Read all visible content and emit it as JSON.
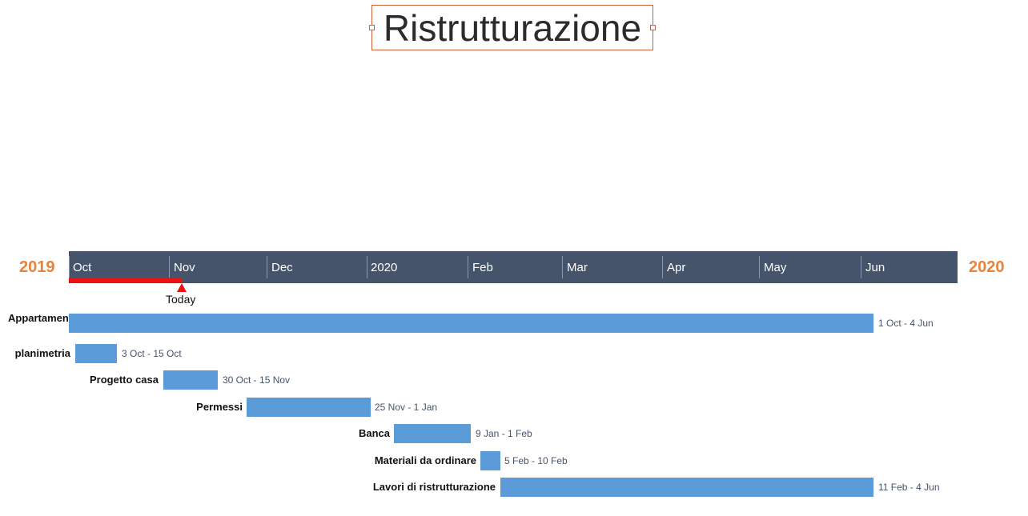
{
  "title": "Ristrutturazione",
  "timeline": {
    "start_year": "2019",
    "end_year": "2020",
    "months": [
      "Oct",
      "Nov",
      "Dec",
      "2020",
      "Feb",
      "Mar",
      "Apr",
      "May",
      "Jun"
    ],
    "today_label": "Today"
  },
  "tasks": [
    {
      "name": "Appartamento",
      "dates": "1 Oct - 4 Jun"
    },
    {
      "name": "planimetria",
      "dates": "3 Oct - 15 Oct"
    },
    {
      "name": "Progetto casa",
      "dates": "30 Oct - 15 Nov"
    },
    {
      "name": "Permessi",
      "dates": "25 Nov - 1 Jan"
    },
    {
      "name": "Banca",
      "dates": "9 Jan - 1 Feb"
    },
    {
      "name": "Materiali da ordinare",
      "dates": "5 Feb - 10 Feb"
    },
    {
      "name": "Lavori di ristrutturazione",
      "dates": "11 Feb - 4 Jun"
    }
  ],
  "colors": {
    "accent_year": "#e8833a",
    "scale_bg": "#45546b",
    "bar": "#5b9bd9",
    "today": "#ee1111",
    "title_border": "#d0603a"
  }
}
